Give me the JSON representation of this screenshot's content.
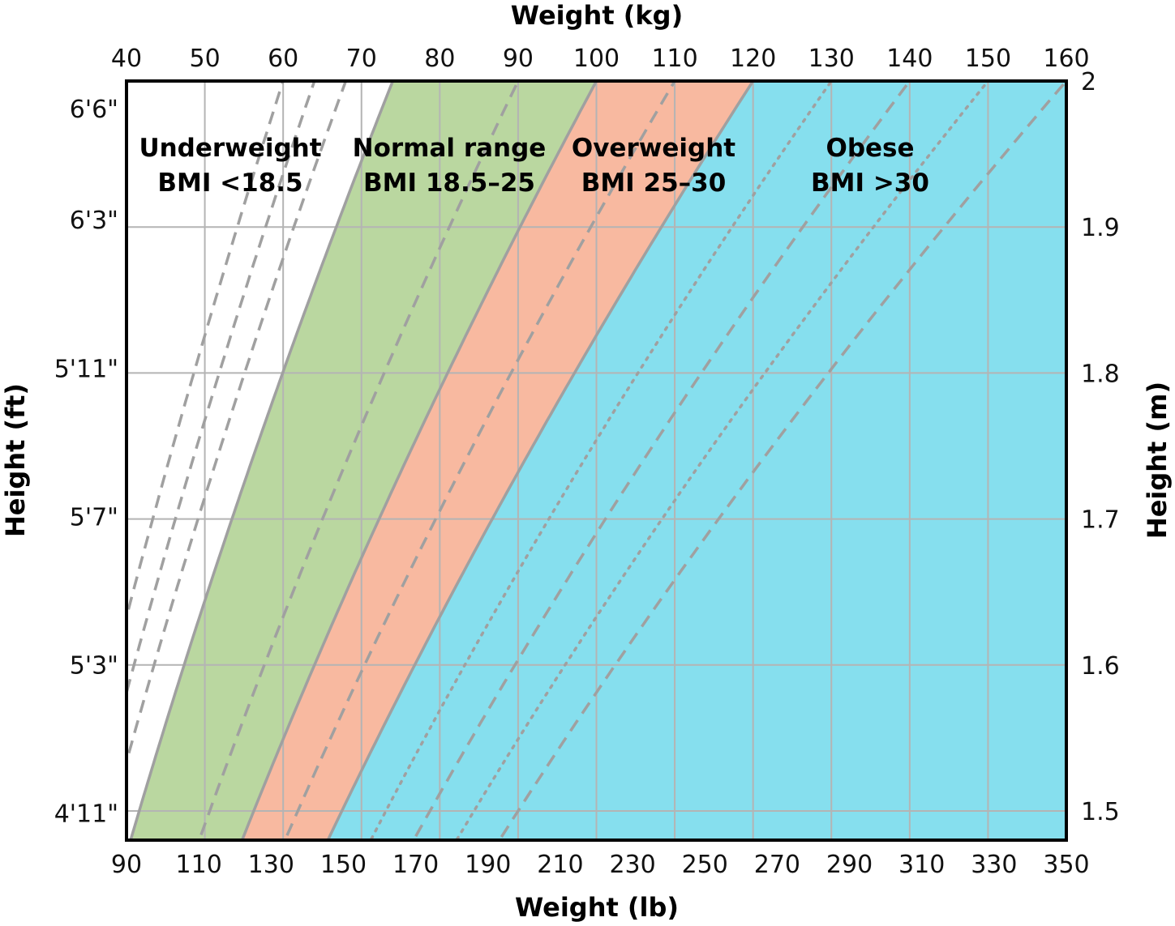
{
  "chart_data": {
    "type": "area",
    "title": "",
    "x_axis_top": {
      "label": "Weight (kg)",
      "range": [
        40,
        160
      ],
      "ticks": [
        "40",
        "50",
        "60",
        "70",
        "80",
        "90",
        "100",
        "110",
        "120",
        "130",
        "140",
        "150",
        "160"
      ]
    },
    "x_axis_bottom": {
      "label": "Weight (lb)",
      "range": [
        90,
        350
      ],
      "ticks": [
        "90",
        "110",
        "130",
        "150",
        "170",
        "190",
        "210",
        "230",
        "250",
        "270",
        "290",
        "310",
        "330",
        "350"
      ]
    },
    "y_axis_left": {
      "label": "Height (ft)",
      "ticks": [
        "6'6\"",
        "6'3\"",
        "5'11\"",
        "5'7\"",
        "5'3\"",
        "4'11\""
      ]
    },
    "y_axis_right": {
      "label": "Height (m)",
      "range": [
        1.48,
        2.0
      ],
      "ticks": [
        "2",
        "1.9",
        "1.8",
        "1.7",
        "1.6",
        "1.5"
      ]
    },
    "grid": true,
    "zones": [
      {
        "name": "Underweight",
        "range": "BMI <18.5",
        "bmi_min": 0,
        "bmi_max": 18.5,
        "color": "#ffffff"
      },
      {
        "name": "Normal range",
        "range": "BMI 18.5–25",
        "bmi_min": 18.5,
        "bmi_max": 25,
        "color": "#bad7a0"
      },
      {
        "name": "Overweight",
        "range": "BMI 25–30",
        "bmi_min": 25,
        "bmi_max": 30,
        "color": "#f8b9a0"
      },
      {
        "name": "Obese",
        "range": "BMI >30",
        "bmi_min": 30,
        "bmi_max": 100,
        "color": "#86dfee"
      }
    ],
    "bmi_lines": [
      {
        "bmi": 15,
        "style": "dashed"
      },
      {
        "bmi": 16,
        "style": "dashed"
      },
      {
        "bmi": 17,
        "style": "dashed"
      },
      {
        "bmi": 22.5,
        "style": "dashed"
      },
      {
        "bmi": 27.5,
        "style": "dashed"
      },
      {
        "bmi": 32.5,
        "style": "dotted"
      },
      {
        "bmi": 35,
        "style": "dashed"
      },
      {
        "bmi": 37.5,
        "style": "dotted"
      },
      {
        "bmi": 40,
        "style": "dashed"
      }
    ],
    "colors": {
      "boundary": "#a0a0a0",
      "guide": "#a0a0a0",
      "grid": "#b4b4b4",
      "frame": "#000000"
    }
  }
}
